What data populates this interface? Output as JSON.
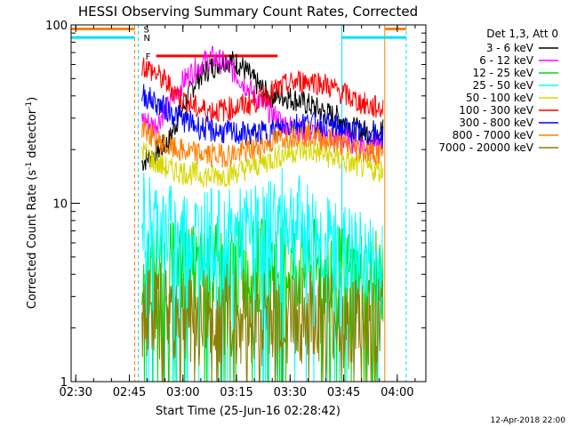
{
  "chart_data": {
    "type": "line",
    "title": "HESSI Observing Summary Count Rates, Corrected",
    "xlabel": "Start Time (25-Jun-16 02:28:42)",
    "ylabel_main": "Corrected Count Rate (s",
    "ylabel_sup1": "-1",
    "ylabel_mid": " detector",
    "ylabel_sup2": "-1",
    "ylabel_end": ")",
    "yscale": "log",
    "xlim": [
      "02:28:42",
      "04:08:00"
    ],
    "ylim": [
      1,
      100
    ],
    "x_ticks": [
      "02:30",
      "02:45",
      "03:00",
      "03:15",
      "03:30",
      "03:45",
      "04:00"
    ],
    "y_ticks": [
      "1",
      "10",
      "100"
    ],
    "legend_title": "Det 1,3, Att 0",
    "legend_placement": "right",
    "footer_date": "12-Apr-2018 22:00",
    "flags": [
      {
        "label": "S",
        "color": "#ff8000",
        "y_level": 95,
        "segments": [
          [
            "02:28:42",
            "02:46:30"
          ],
          [
            "03:56:30",
            "04:02:30"
          ]
        ]
      },
      {
        "label": "N",
        "color": "#00e0ff",
        "y_level": 85,
        "segments": [
          [
            "02:28:42",
            "02:46:30"
          ],
          [
            "03:44:30",
            "04:02:30"
          ]
        ]
      },
      {
        "label": "F",
        "color": "#ff0000",
        "y_level": 67,
        "segments": [
          [
            "02:52:30",
            "03:26:30"
          ]
        ]
      }
    ],
    "vertical_markers": [
      {
        "time": "02:28:42",
        "color": "#00e0ff",
        "style": "solid"
      },
      {
        "time": "02:46:30",
        "color": "#ff8000",
        "style": "dashed"
      },
      {
        "time": "02:47:30",
        "color": "#00e0ff",
        "style": "dashed"
      },
      {
        "time": "03:44:30",
        "color": "#00e0ff",
        "style": "solid"
      },
      {
        "time": "03:56:30",
        "color": "#ff8000",
        "style": "solid"
      },
      {
        "time": "04:02:30",
        "color": "#00e0ff",
        "style": "dashed"
      }
    ],
    "series": [
      {
        "name": "3 - 6 keV",
        "color": "#000000",
        "x": [
          "02:48:30",
          "02:52:00",
          "02:56:00",
          "03:00:00",
          "03:04:00",
          "03:08:00",
          "03:12:00",
          "03:16:00",
          "03:20:00",
          "03:24:00",
          "03:28:00",
          "03:32:00",
          "03:36:00",
          "03:40:00",
          "03:44:00",
          "03:48:00",
          "03:52:00",
          "03:56:00"
        ],
        "y": [
          17,
          19,
          22,
          34,
          50,
          58,
          64,
          60,
          48,
          40,
          40,
          38,
          35,
          32,
          30,
          26,
          25,
          26
        ]
      },
      {
        "name": "6 - 12 keV",
        "color": "#ff00ff",
        "x": [
          "02:48:30",
          "02:52:00",
          "02:56:00",
          "03:00:00",
          "03:04:00",
          "03:08:00",
          "03:12:00",
          "03:16:00",
          "03:20:00",
          "03:24:00",
          "03:28:00",
          "03:32:00",
          "03:36:00",
          "03:40:00",
          "03:44:00",
          "03:48:00",
          "03:52:00",
          "03:56:00"
        ],
        "y": [
          30,
          27,
          35,
          48,
          58,
          66,
          60,
          50,
          40,
          33,
          28,
          26,
          25,
          24,
          23,
          22,
          21,
          21
        ]
      },
      {
        "name": "12 - 25 keV",
        "color": "#00dd00",
        "x": [
          "02:48:30",
          "02:56:00",
          "03:04:00",
          "03:12:00",
          "03:20:00",
          "03:28:00",
          "03:36:00",
          "03:44:00",
          "03:52:00",
          "03:56:00"
        ],
        "y": [
          4.5,
          4.2,
          4.0,
          4.2,
          4.3,
          4.6,
          4.4,
          4.0,
          3.8,
          3.6
        ]
      },
      {
        "name": "25 - 50 keV",
        "color": "#00ffff",
        "x": [
          "02:48:30",
          "02:56:00",
          "03:04:00",
          "03:12:00",
          "03:20:00",
          "03:24:00",
          "03:28:00",
          "03:32:00",
          "03:36:00",
          "03:40:00",
          "03:44:00",
          "03:48:00",
          "03:52:00",
          "03:56:00"
        ],
        "y": [
          8.5,
          7.0,
          6.6,
          6.3,
          6.8,
          7.6,
          8.4,
          7.8,
          6.8,
          6.0,
          5.5,
          5.0,
          4.6,
          4.4
        ]
      },
      {
        "name": "50 - 100 keV",
        "color": "#d8d800",
        "x": [
          "02:48:30",
          "02:52:00",
          "02:56:00",
          "03:00:00",
          "03:04:00",
          "03:08:00",
          "03:12:00",
          "03:16:00",
          "03:20:00",
          "03:24:00",
          "03:28:00",
          "03:32:00",
          "03:36:00",
          "03:40:00",
          "03:44:00",
          "03:48:00",
          "03:52:00",
          "03:56:00"
        ],
        "y": [
          20,
          17,
          15.5,
          15,
          14.5,
          14.2,
          14.4,
          15.2,
          16.2,
          17.4,
          18.8,
          19.8,
          19.6,
          18.6,
          17.4,
          16.4,
          15.6,
          15.2
        ]
      },
      {
        "name": "100 - 300 keV",
        "color": "#ff0000",
        "x": [
          "02:48:30",
          "02:52:00",
          "02:56:00",
          "03:00:00",
          "03:04:00",
          "03:08:00",
          "03:12:00",
          "03:16:00",
          "03:20:00",
          "03:24:00",
          "03:28:00",
          "03:32:00",
          "03:36:00",
          "03:40:00",
          "03:44:00",
          "03:48:00",
          "03:52:00",
          "03:56:00"
        ],
        "y": [
          60,
          54,
          46,
          38,
          34,
          33,
          33.5,
          35,
          37,
          41,
          45,
          48,
          49,
          46,
          42,
          38,
          35,
          34
        ]
      },
      {
        "name": "300 - 800 keV",
        "color": "#0000ff",
        "x": [
          "02:48:30",
          "02:52:00",
          "02:56:00",
          "03:00:00",
          "03:04:00",
          "03:08:00",
          "03:12:00",
          "03:16:00",
          "03:20:00",
          "03:24:00",
          "03:28:00",
          "03:32:00",
          "03:36:00",
          "03:40:00",
          "03:44:00",
          "03:48:00",
          "03:52:00",
          "03:56:00"
        ],
        "y": [
          41,
          37,
          33,
          29.5,
          27,
          25.5,
          25,
          24.6,
          24.4,
          25.2,
          26.6,
          28,
          28.4,
          27.6,
          26.4,
          25.2,
          24.2,
          23.6
        ]
      },
      {
        "name": "800 - 7000 keV",
        "color": "#ff8000",
        "x": [
          "02:48:30",
          "02:52:00",
          "02:56:00",
          "03:00:00",
          "03:04:00",
          "03:08:00",
          "03:12:00",
          "03:16:00",
          "03:20:00",
          "03:24:00",
          "03:28:00",
          "03:32:00",
          "03:36:00",
          "03:40:00",
          "03:44:00",
          "03:48:00",
          "03:52:00",
          "03:56:00"
        ],
        "y": [
          27,
          23,
          20.5,
          19.5,
          19,
          18.6,
          18.6,
          19.2,
          20.2,
          21.8,
          23.4,
          24.4,
          24,
          22.8,
          21.4,
          20.2,
          19.4,
          19
        ]
      },
      {
        "name": "7000 - 20000 keV",
        "color": "#8b8000",
        "x": [
          "02:48:30",
          "02:56:00",
          "03:04:00",
          "03:12:00",
          "03:20:00",
          "03:28:00",
          "03:36:00",
          "03:44:00",
          "03:52:00",
          "03:56:00"
        ],
        "y": [
          2.6,
          2.4,
          2.3,
          2.4,
          2.3,
          2.4,
          2.3,
          2.2,
          2.1,
          2.0
        ]
      }
    ]
  }
}
